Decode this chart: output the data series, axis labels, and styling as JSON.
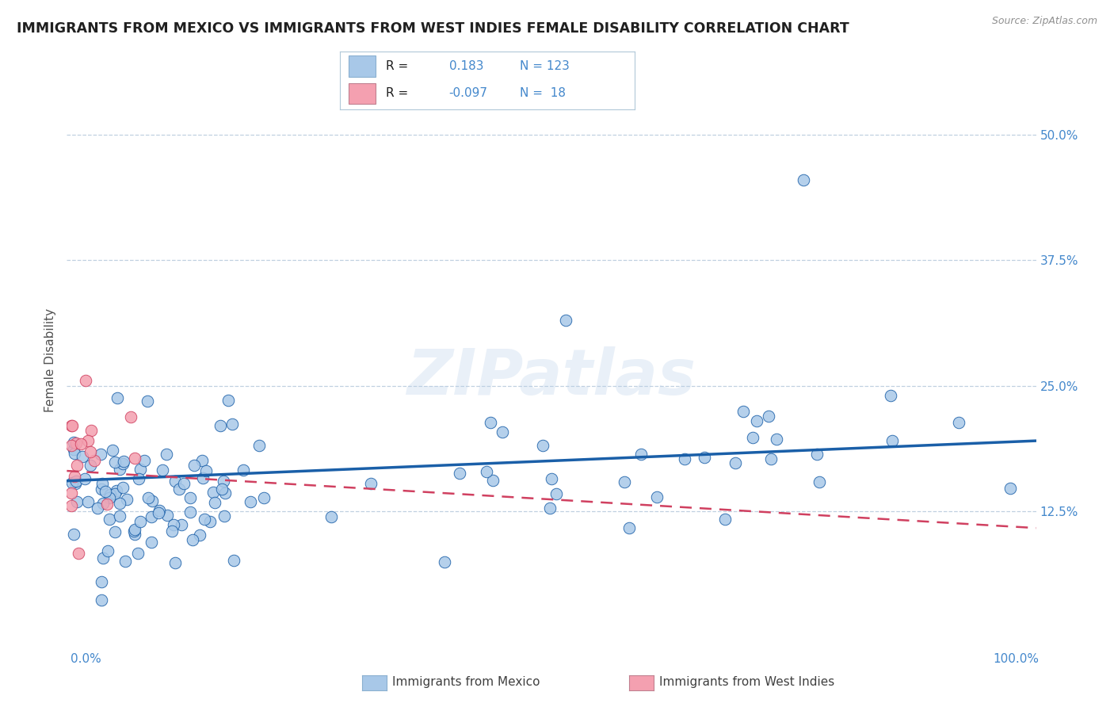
{
  "title": "IMMIGRANTS FROM MEXICO VS IMMIGRANTS FROM WEST INDIES FEMALE DISABILITY CORRELATION CHART",
  "source_text": "Source: ZipAtlas.com",
  "ylabel": "Female Disability",
  "watermark": "ZIPatlas",
  "ytick_values": [
    0.125,
    0.25,
    0.375,
    0.5
  ],
  "xlim": [
    0.0,
    1.0
  ],
  "ylim": [
    0.0,
    0.55
  ],
  "color_mexico": "#a8c8e8",
  "color_westindies": "#f4a0b0",
  "color_mexico_line": "#1a5fa8",
  "color_westindies_line": "#d04060",
  "background_color": "#ffffff",
  "grid_color": "#c0d0e0",
  "title_color": "#202020",
  "right_axis_color": "#4488cc",
  "mexico_line_start_y": 0.155,
  "mexico_line_end_y": 0.195,
  "westindies_line_start_y": 0.165,
  "westindies_line_end_y": 0.108
}
